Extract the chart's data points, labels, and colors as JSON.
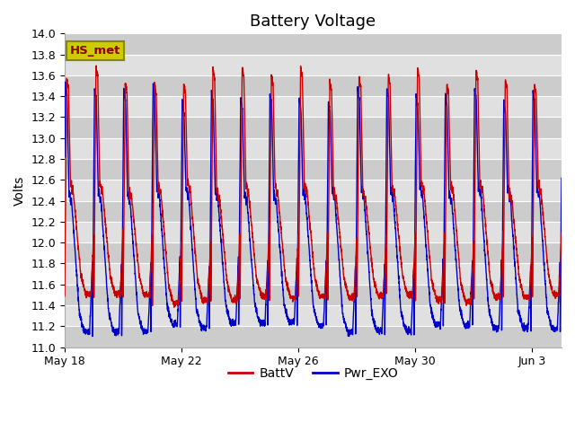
{
  "title": "Battery Voltage",
  "ylabel": "Volts",
  "xlabel": "",
  "ylim": [
    11.0,
    14.0
  ],
  "yticks": [
    11.0,
    11.2,
    11.4,
    11.6,
    11.8,
    12.0,
    12.2,
    12.4,
    12.6,
    12.8,
    13.0,
    13.2,
    13.4,
    13.6,
    13.8,
    14.0
  ],
  "line1_color": "#cc0000",
  "line2_color": "#0000cc",
  "line1_label": "BattV",
  "line2_label": "Pwr_EXO",
  "annotation_label": "HS_met",
  "annotation_bg": "#cccc00",
  "annotation_border": "#888800",
  "background_color": "#ffffff",
  "plot_bg": "#e0e0e0",
  "grid_color": "#c8c8c8",
  "title_fontsize": 13,
  "axis_fontsize": 10,
  "tick_fontsize": 9,
  "legend_fontsize": 10,
  "num_days": 17,
  "x_tick_labels": [
    "May 18",
    "May 22",
    "May 26",
    "May 30",
    "Jun 3"
  ],
  "x_tick_positions": [
    0,
    4,
    8,
    12,
    16
  ]
}
